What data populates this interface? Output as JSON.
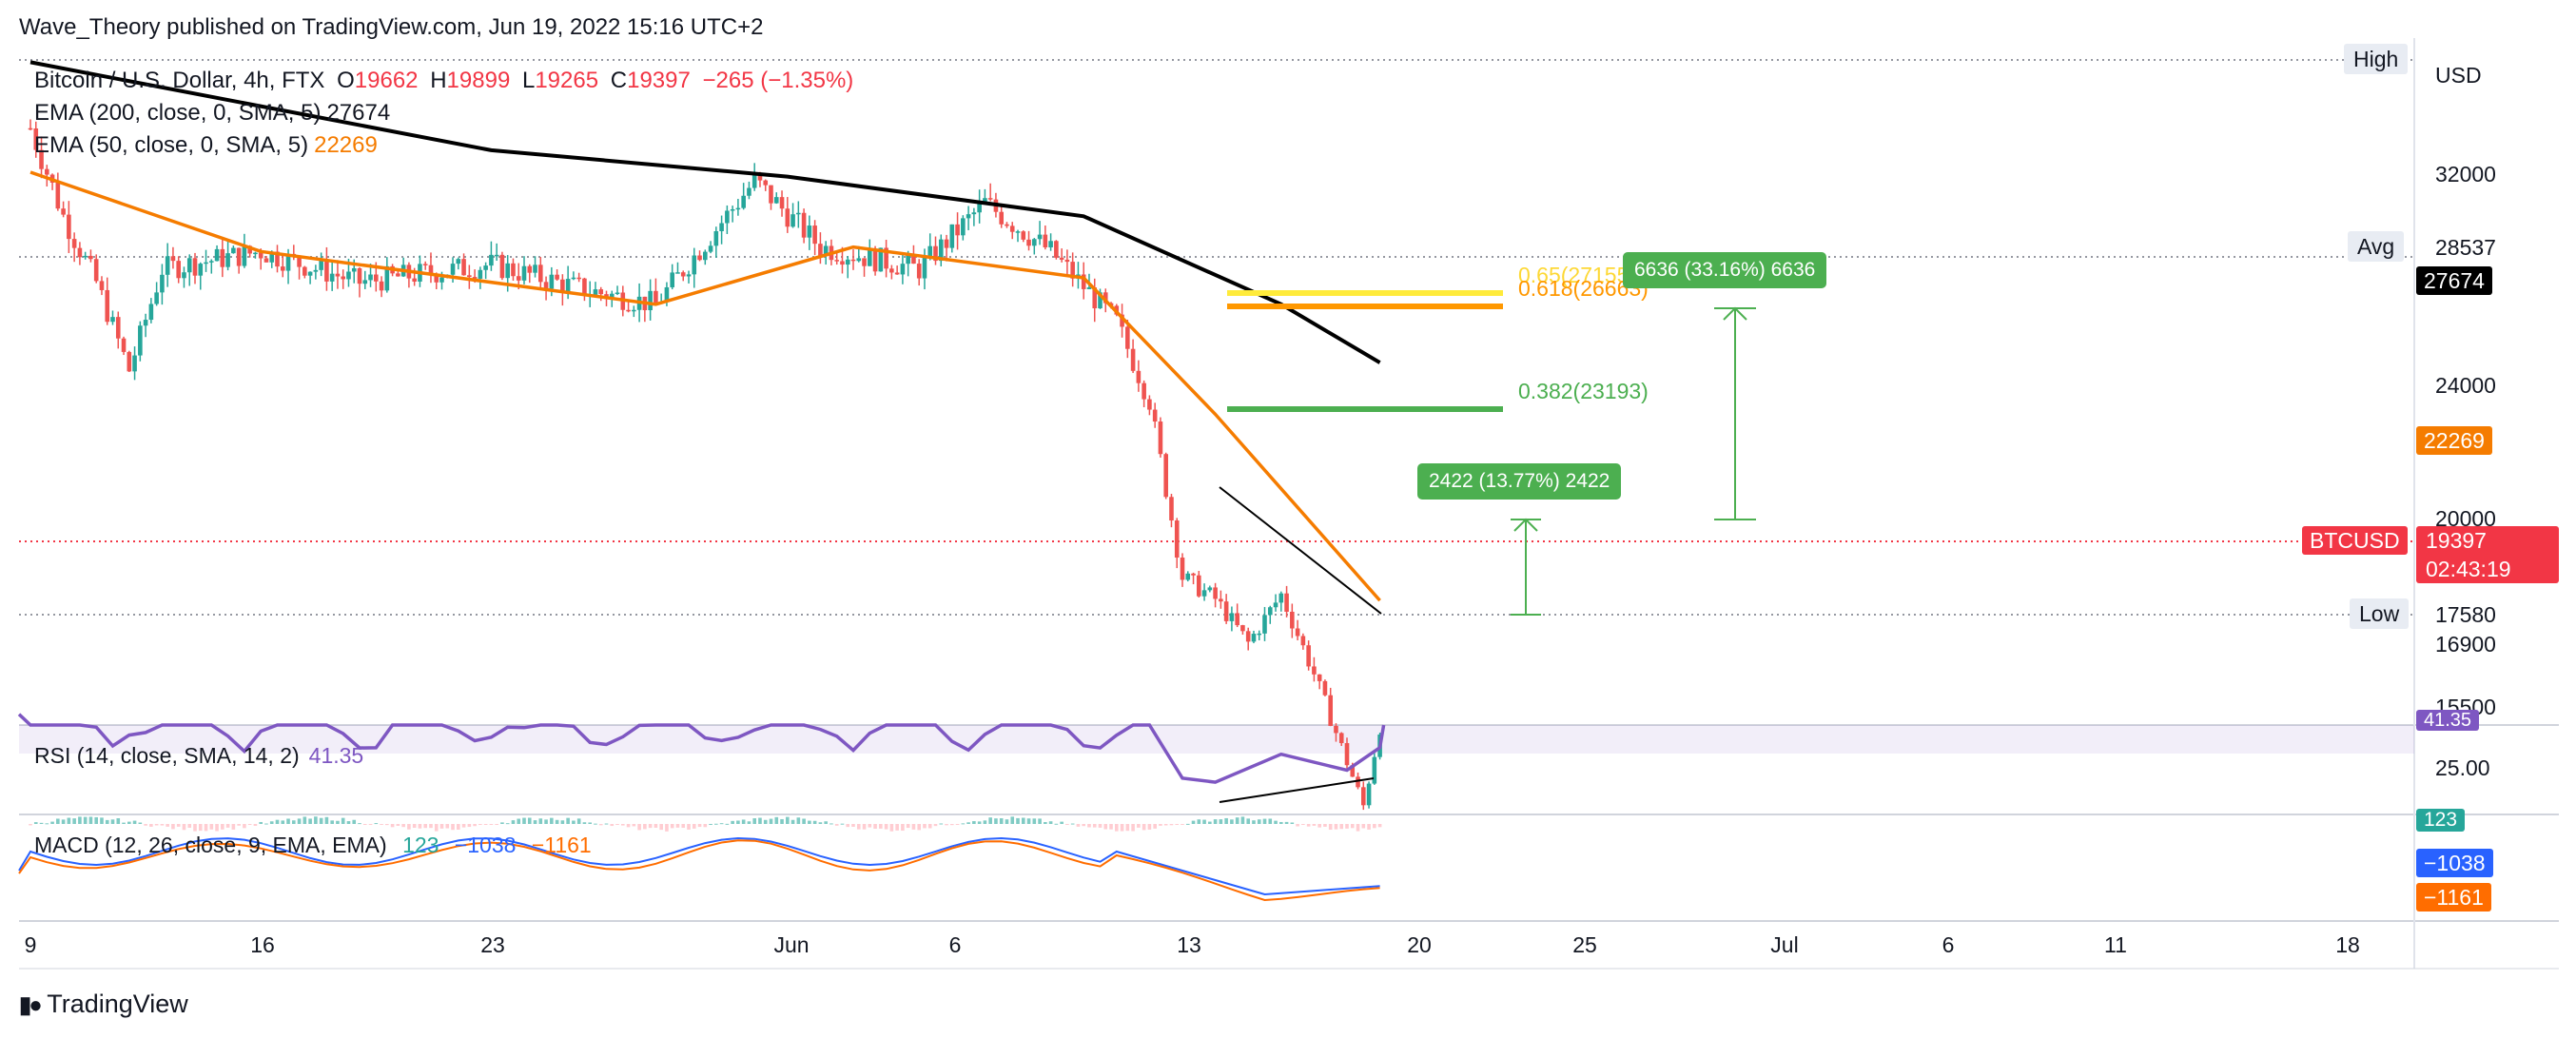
{
  "published_by": "Wave_Theory published on TradingView.com, Jun 19, 2022 15:16 UTC+2",
  "symbol": {
    "name": "Bitcoin / U.S. Dollar, 4h, FTX",
    "o_label": "O",
    "o_value": "19662",
    "h_label": "H",
    "h_value": "19899",
    "l_label": "L",
    "l_value": "19265",
    "c_label": "C",
    "c_value": "19397",
    "change": "−265 (−1.35%)"
  },
  "ema200": {
    "label": "EMA (200, close, 0, SMA, 5)",
    "value": "27674"
  },
  "ema50": {
    "label": "EMA (50, close, 0, SMA, 5)",
    "value": "22269"
  },
  "rsi": {
    "label": "RSI (14, close, SMA, 14, 2)",
    "value": "41.35",
    "axis_label": "25.00",
    "axis_tag": "41.35"
  },
  "macd": {
    "label": "MACD (12, 26, close, 9, EMA, EMA)",
    "hist": "123",
    "macd": "−1038",
    "signal": "−1161"
  },
  "currency": "USD",
  "price_axis": {
    "ticks": [
      "32000",
      "24000",
      "20000",
      "16900",
      "15500"
    ],
    "high_label": "High",
    "avg_label": "Avg",
    "avg_value": "28537",
    "ema200_tag": "27674",
    "ema50_tag": "22269",
    "symbol_tag": "BTCUSD",
    "price_tag": "19397",
    "countdown": "02:43:19",
    "low_label": "Low",
    "low_value": "17580"
  },
  "fib": {
    "l065": "0.65(27155)",
    "l0618": "0.618(26663)",
    "l0382": "0.382(23193)"
  },
  "measure_small": "2422 (13.77%) 2422",
  "measure_large": "6636 (33.16%) 6636",
  "time_axis": [
    "9",
    "16",
    "23",
    "Jun",
    "6",
    "13",
    "20",
    "25",
    "Jul",
    "6",
    "11",
    "18"
  ],
  "brand": "TradingView",
  "colors": {
    "up": "#26a69a",
    "down": "#ef5350",
    "ema200": "#000000",
    "ema50": "#f57c00",
    "rsi": "#7e57c2",
    "macd": "#2962ff",
    "signal": "#ff6d00",
    "fib065": "#ffeb3b",
    "fib0618": "#ff9800",
    "fib0382": "#4caf50",
    "measure": "#4caf50",
    "price": "#f23645"
  },
  "chart_data": {
    "type": "candlestick",
    "timeframe": "4h",
    "x_ticks": [
      "9",
      "16",
      "23",
      "Jun",
      "6",
      "13",
      "20",
      "25",
      "Jul",
      "6",
      "11",
      "18"
    ],
    "ylim": [
      15000,
      34000
    ],
    "price_path": [
      {
        "t": "May 9",
        "close": 33000
      },
      {
        "t": "May 10",
        "close": 31000
      },
      {
        "t": "May 11",
        "close": 29500
      },
      {
        "t": "May 12",
        "close": 27500
      },
      {
        "t": "May 13",
        "close": 29800
      },
      {
        "t": "May 16",
        "close": 30200
      },
      {
        "t": "May 19",
        "close": 29500
      },
      {
        "t": "May 23",
        "close": 29900
      },
      {
        "t": "May 26",
        "close": 29300
      },
      {
        "t": "May 28",
        "close": 29000
      },
      {
        "t": "May 31",
        "close": 31800
      },
      {
        "t": "Jun 2",
        "close": 30300
      },
      {
        "t": "Jun 5",
        "close": 29800
      },
      {
        "t": "Jun 7",
        "close": 31300
      },
      {
        "t": "Jun 9",
        "close": 30200
      },
      {
        "t": "Jun 11",
        "close": 28600
      },
      {
        "t": "Jun 12",
        "close": 26800
      },
      {
        "t": "Jun 13",
        "close": 22800
      },
      {
        "t": "Jun 14",
        "close": 22300
      },
      {
        "t": "Jun 15",
        "close": 21300
      },
      {
        "t": "Jun 16",
        "close": 22400
      },
      {
        "t": "Jun 17",
        "close": 20600
      },
      {
        "t": "Jun 18",
        "close": 18600
      },
      {
        "t": "Jun 18 12h",
        "close": 17600
      },
      {
        "t": "Jun 19",
        "close": 19397
      }
    ],
    "ema200_path": [
      {
        "t": "May 9",
        "value": 34500
      },
      {
        "t": "May 23",
        "value": 32500
      },
      {
        "t": "Jun 1",
        "value": 31900
      },
      {
        "t": "Jun 10",
        "value": 31000
      },
      {
        "t": "Jun 16",
        "value": 29000
      },
      {
        "t": "Jun 19",
        "value": 27674
      }
    ],
    "ema50_path": [
      {
        "t": "May 9",
        "value": 32000
      },
      {
        "t": "May 16",
        "value": 30200
      },
      {
        "t": "May 28",
        "value": 29000
      },
      {
        "t": "Jun 3",
        "value": 30300
      },
      {
        "t": "Jun 10",
        "value": 29600
      },
      {
        "t": "Jun 14",
        "value": 26500
      },
      {
        "t": "Jun 19",
        "value": 22269
      }
    ],
    "levels": {
      "high": null,
      "avg": 28537,
      "low": 17580,
      "last": 19397,
      "fib_065": 27155,
      "fib_0618": 26663,
      "fib_0382": 23193
    },
    "measurements": [
      {
        "from": 17580,
        "to": 20002,
        "change": 2422,
        "percent": 13.77
      },
      {
        "from": 20002,
        "to": 26638,
        "change": 6636,
        "percent": 33.16
      }
    ],
    "rsi_path": [
      {
        "t": "Jun 13",
        "value": 26
      },
      {
        "t": "Jun 14",
        "value": 24
      },
      {
        "t": "Jun 16",
        "value": 38
      },
      {
        "t": "Jun 18",
        "value": 30
      },
      {
        "t": "Jun 19",
        "value": 41.35
      }
    ],
    "macd_last": {
      "hist": 123,
      "macd": -1038,
      "signal": -1161
    }
  }
}
